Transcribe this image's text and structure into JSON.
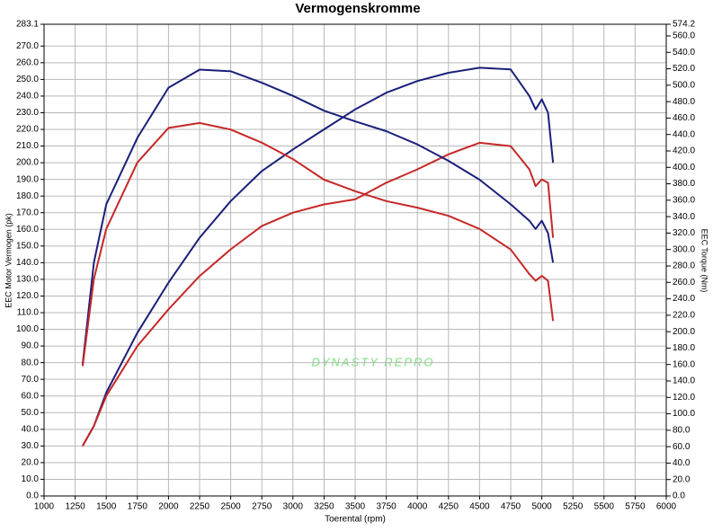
{
  "chart_data": {
    "type": "line",
    "title": "Vermogenskromme",
    "x_label": "Toerental (rpm)",
    "y_label": "EEC Motor Vermogen (pk)",
    "y2_label": "EEC Torque (Nm)",
    "watermark": "DYNASTY REPRO",
    "x": [
      1310,
      1400,
      1500,
      1750,
      2000,
      2250,
      2500,
      2750,
      3000,
      3250,
      3500,
      3750,
      4000,
      4250,
      4500,
      4750,
      4900,
      4950,
      5000,
      5050,
      5090
    ],
    "series": [
      {
        "color": "#1b1f7a",
        "values": [
          30,
          42,
          62,
          98,
          128,
          155,
          177,
          195,
          208,
          220,
          232,
          242,
          249,
          254,
          257,
          256,
          240,
          232,
          238,
          230,
          200
        ]
      },
      {
        "color": "#c62828",
        "values": [
          30,
          42,
          60,
          90,
          112,
          132,
          148,
          162,
          170,
          175,
          178,
          188,
          196,
          205,
          212,
          210,
          196,
          186,
          190,
          188,
          155
        ]
      },
      {
        "color": "#1b1f7a",
        "axis": "y2",
        "values": [
          160,
          284,
          355,
          436,
          497,
          519,
          517,
          503,
          487,
          469,
          456,
          444,
          428,
          408,
          385,
          355,
          335,
          325,
          335,
          320,
          284
        ]
      },
      {
        "color": "#c62828",
        "axis": "y2",
        "values": [
          158,
          264,
          325,
          406,
          448,
          454,
          446,
          430,
          410,
          385,
          371,
          359,
          351,
          341,
          325,
          300,
          270,
          262,
          268,
          262,
          213
        ]
      }
    ],
    "xlim": [
      1000,
      6000
    ],
    "xticks": [
      1000,
      1250,
      1500,
      1750,
      2000,
      2250,
      2500,
      2750,
      3000,
      3250,
      3500,
      3750,
      4000,
      4250,
      4500,
      4750,
      5000,
      5250,
      5500,
      5750,
      6000
    ],
    "ylim": [
      0,
      283.1
    ],
    "yticks": [
      {
        "value": 0,
        "label": "0.0"
      },
      {
        "value": 10,
        "label": "10.0"
      },
      {
        "value": 20,
        "label": "20.0"
      },
      {
        "value": 30,
        "label": "30.0"
      },
      {
        "value": 40,
        "label": "40.0"
      },
      {
        "value": 50,
        "label": "50.0"
      },
      {
        "value": 60,
        "label": "60.0"
      },
      {
        "value": 70,
        "label": "70.0"
      },
      {
        "value": 80,
        "label": "80.0"
      },
      {
        "value": 90,
        "label": "90.0"
      },
      {
        "value": 100,
        "label": "100.0"
      },
      {
        "value": 110,
        "label": "110.0"
      },
      {
        "value": 120,
        "label": "120.0"
      },
      {
        "value": 130,
        "label": "130.0"
      },
      {
        "value": 140,
        "label": "140.0"
      },
      {
        "value": 150,
        "label": "150.0"
      },
      {
        "value": 160,
        "label": "160.0"
      },
      {
        "value": 170,
        "label": "170.0"
      },
      {
        "value": 180,
        "label": "180.0"
      },
      {
        "value": 190,
        "label": "190.0"
      },
      {
        "value": 200,
        "label": "200.0"
      },
      {
        "value": 210,
        "label": "210.0"
      },
      {
        "value": 220,
        "label": "220.0"
      },
      {
        "value": 230,
        "label": "230.0"
      },
      {
        "value": 240,
        "label": "240.0"
      },
      {
        "value": 250,
        "label": "250.0"
      },
      {
        "value": 260,
        "label": "260.0"
      },
      {
        "value": 270,
        "label": "270.0"
      },
      283.1
    ],
    "y2lim": [
      0,
      574.2
    ],
    "y2ticks": [
      {
        "value": 0,
        "label": "0.0"
      },
      {
        "value": 20,
        "label": "20.0"
      },
      {
        "value": 40,
        "label": "40.0"
      },
      {
        "value": 60,
        "label": "60.0"
      },
      {
        "value": 80,
        "label": "80.0"
      },
      {
        "value": 100,
        "label": "100.0"
      },
      {
        "value": 120,
        "label": "120.0"
      },
      {
        "value": 140,
        "label": "140.0"
      },
      {
        "value": 160,
        "label": "160.0"
      },
      {
        "value": 180,
        "label": "180.0"
      },
      {
        "value": 200,
        "label": "200.0"
      },
      {
        "value": 220,
        "label": "220.0"
      },
      {
        "value": 240,
        "label": "240.0"
      },
      {
        "value": 260,
        "label": "260.0"
      },
      {
        "value": 280,
        "label": "280.0"
      },
      {
        "value": 300,
        "label": "300.0"
      },
      {
        "value": 320,
        "label": "320.0"
      },
      {
        "value": 340,
        "label": "340.0"
      },
      {
        "value": 360,
        "label": "360.0"
      },
      {
        "value": 380,
        "label": "380.0"
      },
      {
        "value": 400,
        "label": "400.0"
      },
      {
        "value": 420,
        "label": "420.0"
      },
      {
        "value": 440,
        "label": "440.0"
      },
      {
        "value": 460,
        "label": "460.0"
      },
      {
        "value": 480,
        "label": "480.0"
      },
      {
        "value": 500,
        "label": "500.0"
      },
      {
        "value": 520,
        "label": "520.0"
      },
      {
        "value": 540,
        "label": "540.0"
      },
      {
        "value": 560,
        "label": "560.0"
      },
      574.2
    ],
    "grid": true
  }
}
